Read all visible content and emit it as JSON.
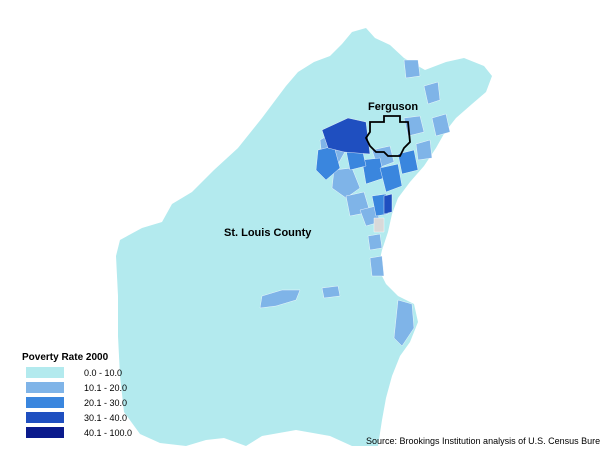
{
  "map": {
    "county_label": "St. Louis County",
    "city_label": "Ferguson",
    "source": "Source: Brookings Institution analysis of U.S. Census Bureau data"
  },
  "legend": {
    "title": "Poverty Rate 2000",
    "items": [
      {
        "label": "0.0 - 10.0",
        "color": "#b3eaee"
      },
      {
        "label": "10.1 - 20.0",
        "color": "#7fb4e8"
      },
      {
        "label": "20.1 - 30.0",
        "color": "#3a86de"
      },
      {
        "label": "30.1 - 40.0",
        "color": "#1f4fc0"
      },
      {
        "label": "40.1 - 100.0",
        "color": "#0a1a8c"
      }
    ]
  },
  "colors": {
    "county_base": "#b3eaee",
    "ferguson_outline": "#000000",
    "no_data": "#d9d9d9"
  }
}
